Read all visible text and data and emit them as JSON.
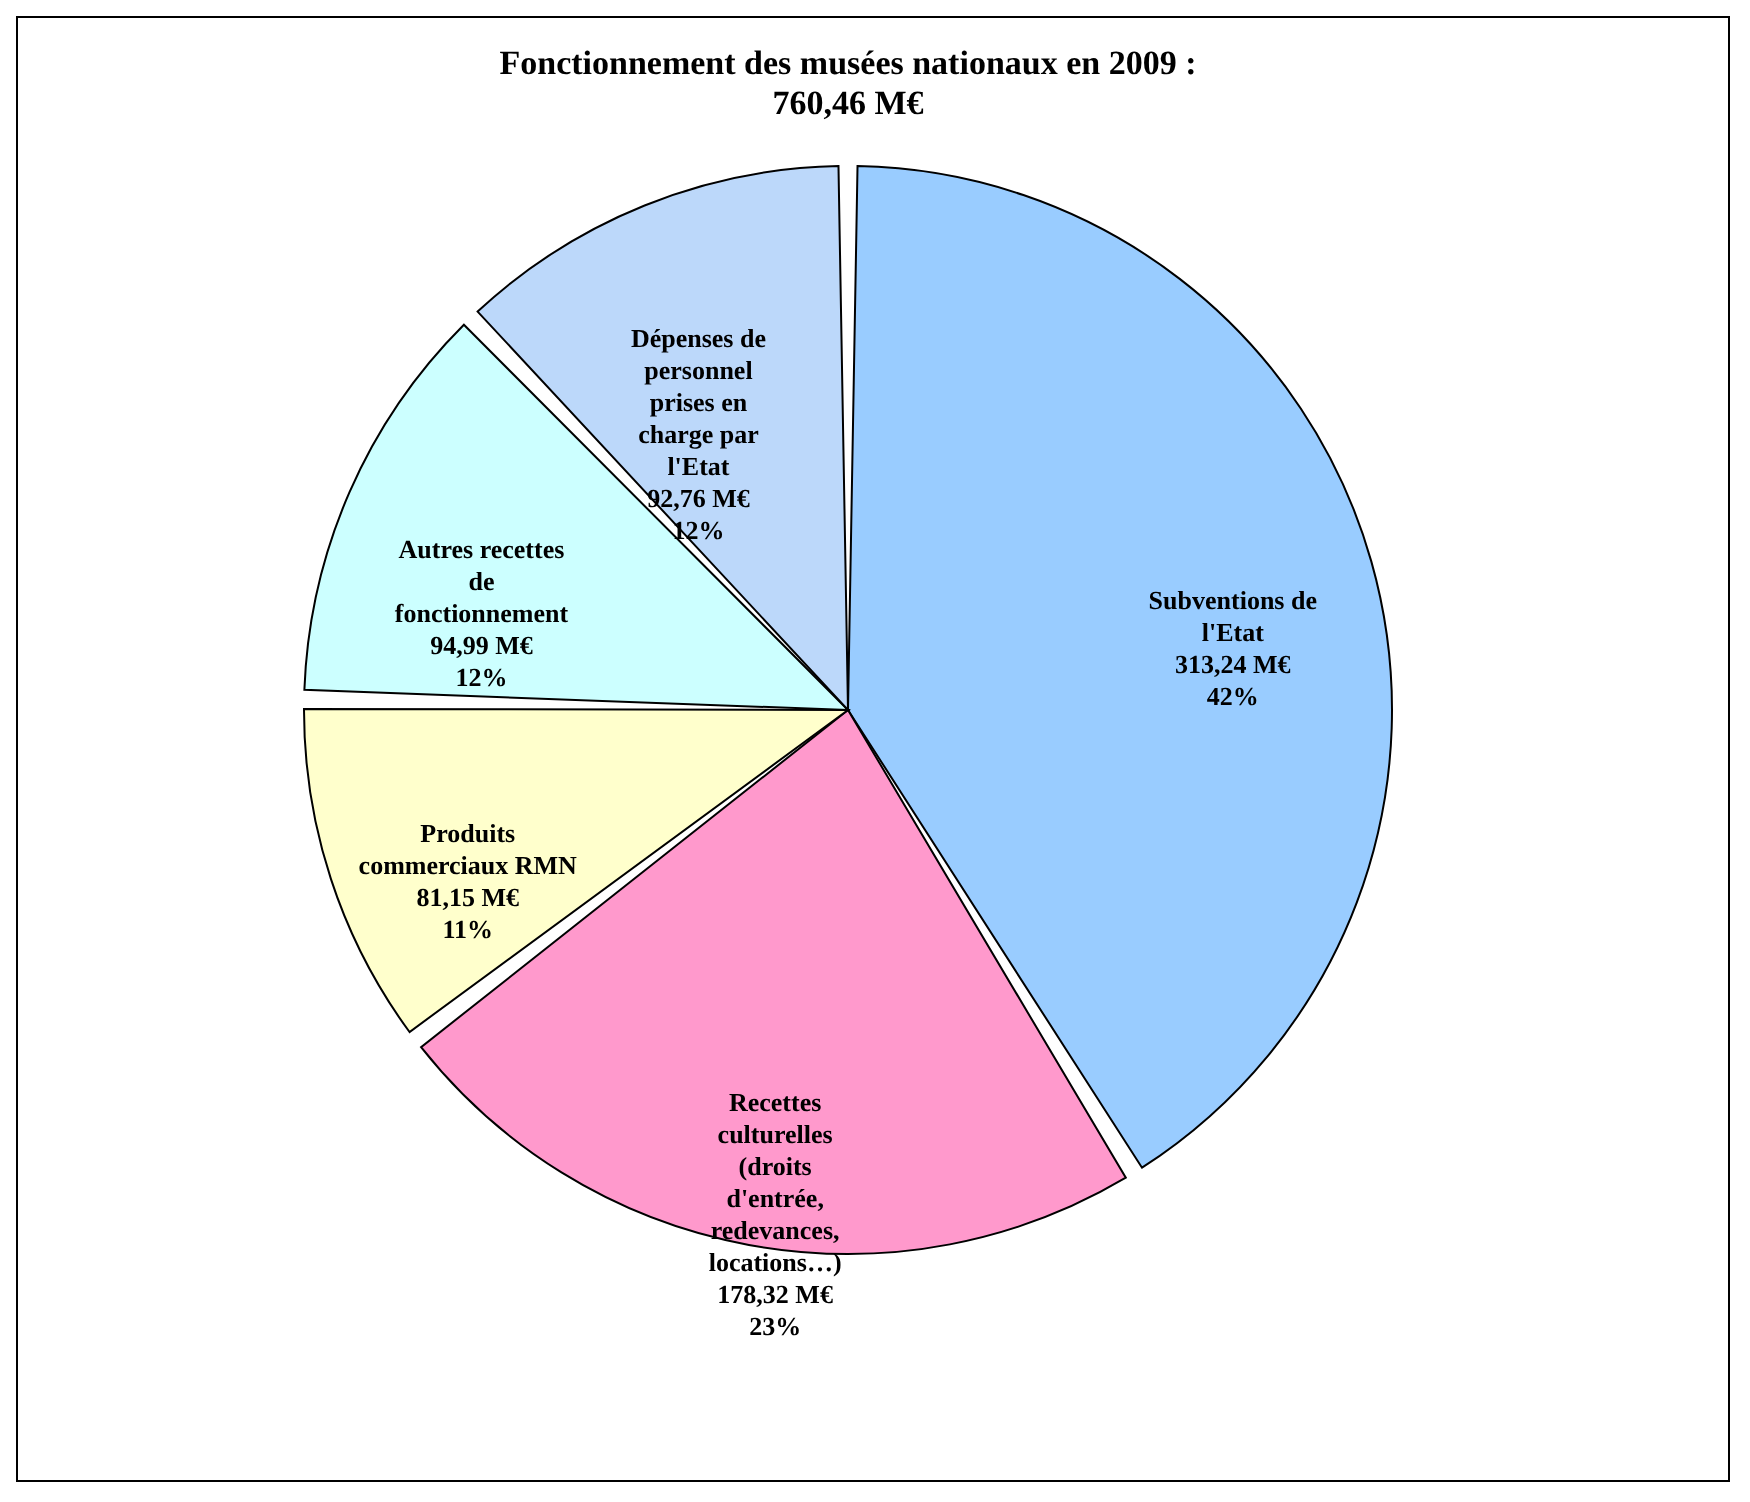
{
  "chart_data": {
    "type": "pie",
    "title": "Fonctionnement des musées nationaux en 2009 :",
    "subtitle": "760,46 M€",
    "categories": [
      "Subventions de l'Etat",
      "Recettes culturelles (droits d'entrée, redevances, locations…)",
      "Produits commerciaux RMN",
      "Autres recettes de fonctionnement",
      "Dépenses de personnel prises en charge par l'Etat"
    ],
    "values": [
      313.24,
      178.32,
      81.15,
      94.99,
      92.76
    ],
    "value_labels": [
      "313,24 M€\n42%",
      "178,32 M€\n23%",
      "81,15 M€\n11%",
      "94,99 M€\n12%",
      "92,76 M€\n12%"
    ],
    "colors": [
      "#99ccff",
      "#ff99cc",
      "#ffffcc",
      "#ccffff",
      "#bcd8fa"
    ]
  }
}
